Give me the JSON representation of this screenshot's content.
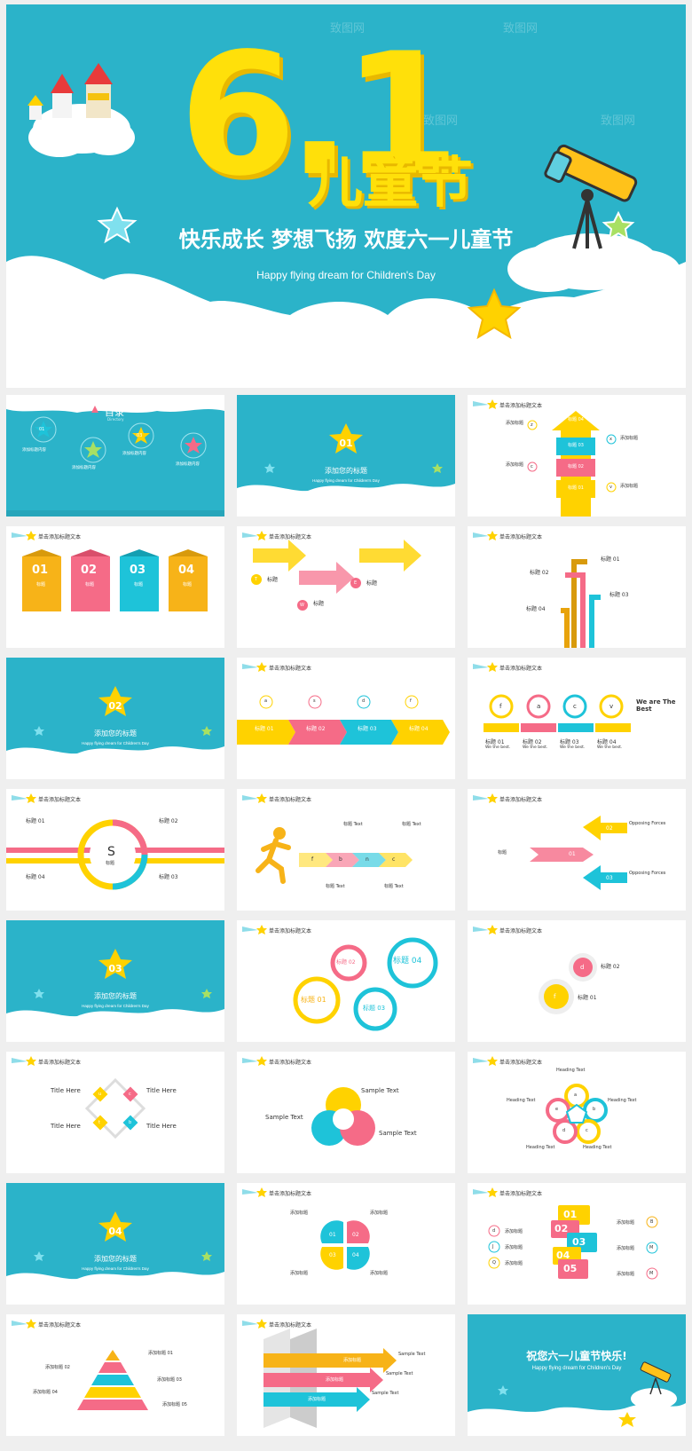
{
  "hero": {
    "big_number": "6.1",
    "festival_name": "儿童节",
    "subtitle": "快乐成长 梦想飞扬 欢度六一儿童节",
    "subtitle_en": "Happy flying dream for Children's Day",
    "watermark": "致图网",
    "castle_sign": "MAXIE"
  },
  "common": {
    "slide_header": "单击添加标题文本",
    "section_title": "添加您的标题",
    "section_en": "Happy flying dream for Children's Day",
    "filler": "When an unknown printer took a galley of type and scrambled it to",
    "lorem": "Lorem ipsum dolor sit amet, consectetur adipiscing elit."
  },
  "toc": {
    "title": "目录",
    "title_en": "Directory",
    "items": [
      {
        "num": "01",
        "label": "添加标题内容"
      },
      {
        "num": "02",
        "label": "添加标题内容"
      },
      {
        "num": "03",
        "label": "添加标题内容"
      },
      {
        "num": "04",
        "label": "添加标题内容"
      }
    ]
  },
  "sections": [
    "01",
    "02",
    "03",
    "04"
  ],
  "s3": {
    "tags": [
      "标题 04",
      "标题 03",
      "标题 02",
      "标题 01"
    ],
    "left": [
      "添加标题",
      "添加标题"
    ],
    "right": [
      "添加标题",
      "添加标题"
    ],
    "letters": [
      "z",
      "c",
      "x",
      "v"
    ]
  },
  "s4": {
    "nums": [
      "01",
      "02",
      "03",
      "04"
    ],
    "word": "标题"
  },
  "s5": {
    "labels": [
      "标题",
      "标题",
      "标题"
    ],
    "steps": [
      "01",
      "02",
      "03"
    ],
    "letters": [
      "T",
      "W",
      "E"
    ]
  },
  "s6": {
    "labels": [
      "标题 01",
      "标题 02",
      "标题 03",
      "标题 04"
    ]
  },
  "s8": {
    "labels": [
      "标题 01",
      "标题 02",
      "标题 03",
      "标题 04"
    ],
    "letters": [
      "a",
      "s",
      "d",
      "f"
    ]
  },
  "s9": {
    "labels": [
      "标题 01",
      "标题 02",
      "标题 03",
      "标题 04"
    ],
    "sub": "We the best.",
    "letters": [
      "f",
      "a",
      "c",
      "v"
    ],
    "tag": "We are The Best"
  },
  "s10": {
    "labels": [
      "标题 01",
      "标题 02",
      "标题 03",
      "标题 04"
    ],
    "center": "S",
    "center_label": "标题"
  },
  "s11": {
    "labels": [
      "标题 Text",
      "标题 Text",
      "标题 Text",
      "标题 Text"
    ],
    "letters": [
      "f",
      "b",
      "n",
      "c"
    ]
  },
  "s12": {
    "labels": [
      "Opposing Forces",
      "Opposing Forces",
      "标题"
    ],
    "nums": [
      "02",
      "01",
      "03"
    ]
  },
  "s14": {
    "labels": [
      "标题 01",
      "标题 02",
      "标题 03",
      "标题 04"
    ]
  },
  "s15": {
    "labels": [
      "标题 02",
      "标题 01"
    ],
    "letters": [
      "d",
      "f"
    ]
  },
  "s16": {
    "labels": [
      "Title Here",
      "Title Here",
      "Title Here",
      "Title Here"
    ],
    "letters": [
      "u",
      "c",
      "t",
      "b"
    ]
  },
  "s17": {
    "labels": [
      "Sample Text",
      "Sample Text",
      "Sample Text"
    ],
    "nums": [
      "01",
      "02",
      "03"
    ]
  },
  "s18": {
    "labels": [
      "Heading Text",
      "Heading Text",
      "Heading Text",
      "Heading Text",
      "Heading Text"
    ],
    "letters": [
      "a",
      "b",
      "c",
      "d",
      "e"
    ]
  },
  "s20": {
    "labels": [
      "添加标题",
      "添加标题",
      "添加标题",
      "添加标题"
    ],
    "nums": [
      "01",
      "02",
      "03",
      "04"
    ]
  },
  "s21": {
    "nums": [
      "01",
      "02",
      "03",
      "04",
      "05"
    ],
    "left": [
      "添加标题",
      "添加标题",
      "添加标题"
    ],
    "right": [
      "添加标题",
      "添加标题",
      "添加标题"
    ],
    "letters_left": [
      "d",
      "J",
      "Q"
    ],
    "letters_right": [
      "B",
      "M",
      "M"
    ]
  },
  "s22": {
    "labels": [
      "添加标题 01",
      "添加标题 02",
      "添加标题 03",
      "添加标题 04",
      "添加标题 05"
    ]
  },
  "s23": {
    "labels": [
      "Sample Text",
      "Sample Text",
      "Sample Text"
    ],
    "bars": [
      "添加标题",
      "添加标题",
      "添加标题"
    ]
  },
  "final": {
    "title": "祝您六一儿童节快乐!",
    "en": "Happy flying dream for Children's Day"
  },
  "colors": {
    "teal": "#2bb3c9",
    "yellow": "#ffd200",
    "pink": "#f56b87",
    "blue": "#1ec3d9",
    "orange": "#f7b318"
  }
}
